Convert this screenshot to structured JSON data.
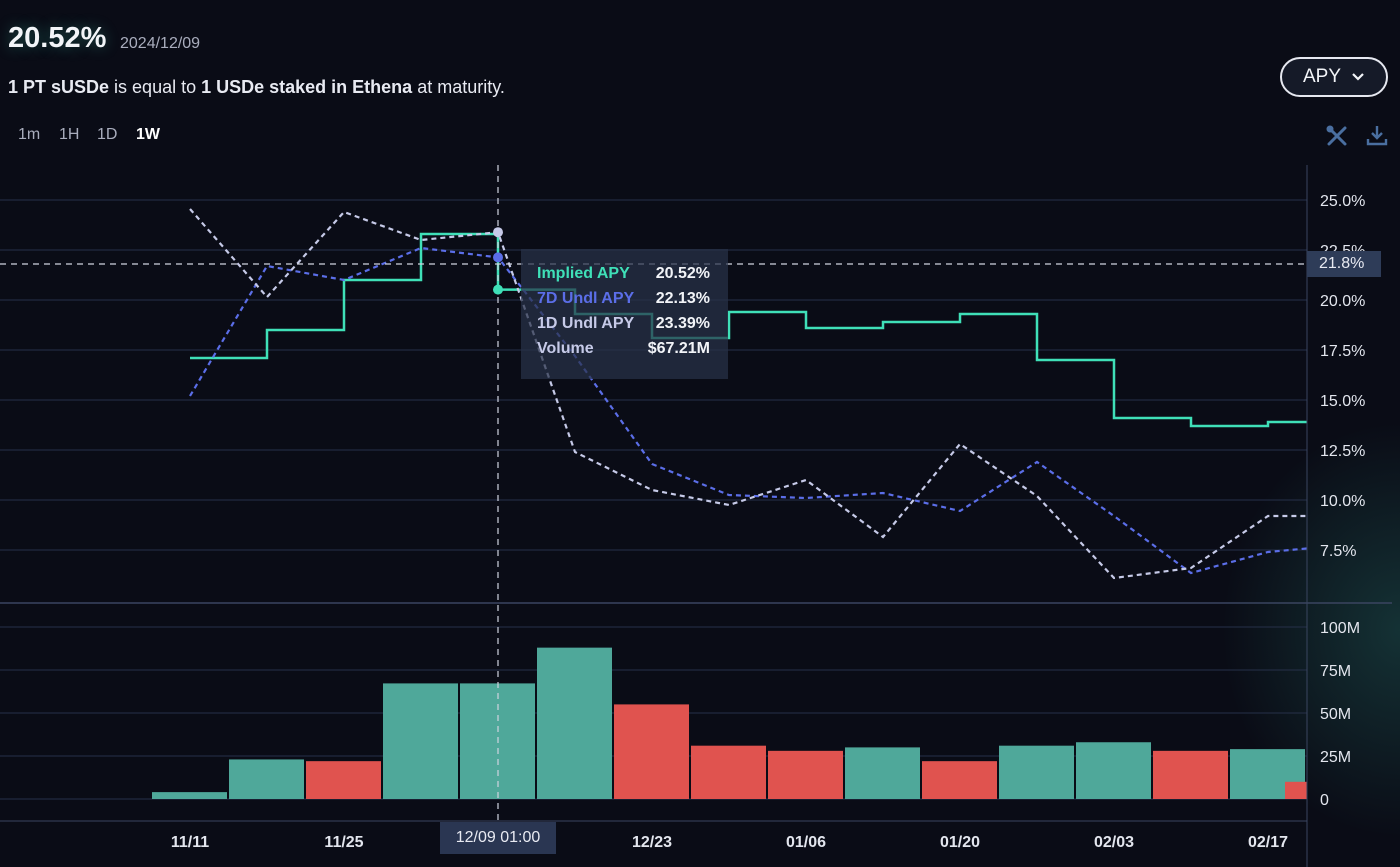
{
  "header": {
    "value": "20.52%",
    "date": "2024/12/09",
    "description": [
      {
        "text": "1 PT sUSDe",
        "bold": true
      },
      {
        "text": " is equal to ",
        "bold": false
      },
      {
        "text": "1 USDe staked in Ethena",
        "bold": true
      },
      {
        "text": " at maturity.",
        "bold": false
      }
    ]
  },
  "timeframes": [
    {
      "label": "1m",
      "active": false
    },
    {
      "label": "1H",
      "active": false
    },
    {
      "label": "1D",
      "active": false
    },
    {
      "label": "1W",
      "active": true
    }
  ],
  "metric_select": {
    "label": "APY"
  },
  "tools": {
    "settings_icon": "wrench-screwdriver-icon",
    "download_icon": "download-icon"
  },
  "tooltip": {
    "rows": [
      {
        "label": "Implied APY",
        "value": "20.52%",
        "color": "#3fe0b8"
      },
      {
        "label": "7D Undl APY",
        "value": "22.13%",
        "color": "#5b6ee8"
      },
      {
        "label": "1D Undl APY",
        "value": "23.39%",
        "color": "#c6cae8"
      },
      {
        "label": "Volume",
        "value": "$67.21M",
        "color": "#c6cae8"
      }
    ]
  },
  "crosshair": {
    "x_label": "12/09 01:00",
    "y_label": "21.8%",
    "y_value": 21.8,
    "x_day": 28
  },
  "chart_data": {
    "type": "line",
    "x_days_since": "11/11",
    "x": [
      0,
      7,
      14,
      21,
      28,
      35,
      42,
      49,
      56,
      63,
      70,
      77,
      84,
      91,
      98,
      103
    ],
    "xticks": [
      {
        "day": 0,
        "label": "11/11"
      },
      {
        "day": 14,
        "label": "11/25"
      },
      {
        "day": 42,
        "label": "12/23"
      },
      {
        "day": 56,
        "label": "01/06"
      },
      {
        "day": 70,
        "label": "01/20"
      },
      {
        "day": 84,
        "label": "02/03"
      },
      {
        "day": 98,
        "label": "02/17"
      }
    ],
    "ylim": [
      5.5,
      26.7
    ],
    "yticks": [
      "25.0%",
      "22.5%",
      "20.0%",
      "17.5%",
      "15.0%",
      "12.5%",
      "10.0%",
      "7.5%"
    ],
    "ytick_values": [
      25,
      22.5,
      20,
      17.5,
      15,
      12.5,
      10,
      7.5
    ],
    "series": [
      {
        "name": "Implied APY",
        "style": "step",
        "color": "#3fe0b8",
        "values": [
          17.1,
          18.5,
          21.0,
          23.3,
          20.52,
          19.3,
          18.1,
          19.4,
          18.6,
          18.9,
          19.3,
          17.0,
          14.1,
          13.7,
          13.9,
          13.9
        ]
      },
      {
        "name": "7D Undl APY",
        "style": "dashed",
        "color": "#5b6ee8",
        "values": [
          15.2,
          21.7,
          21.0,
          22.6,
          22.13,
          17.2,
          11.8,
          10.25,
          10.1,
          10.35,
          9.45,
          11.9,
          9.2,
          6.35,
          7.4,
          7.65
        ]
      },
      {
        "name": "1D Undl APY",
        "style": "dashed",
        "color": "#c6cae8",
        "values": [
          24.55,
          20.15,
          24.4,
          23.0,
          23.39,
          12.4,
          10.5,
          9.75,
          11.0,
          8.15,
          12.8,
          10.2,
          6.1,
          6.6,
          9.2,
          9.2
        ]
      }
    ],
    "volume": {
      "name": "Volume",
      "unit": "M",
      "ylim": [
        0,
        100
      ],
      "yticks": [
        "100M",
        "75M",
        "50M",
        "25M",
        "0"
      ],
      "ytick_values": [
        100,
        75,
        50,
        25,
        0
      ],
      "values": [
        4,
        23,
        22,
        67.21,
        67.21,
        88,
        55,
        31,
        28,
        30,
        22,
        31,
        33,
        28,
        29,
        10
      ],
      "direction": [
        "up",
        "up",
        "down",
        "up",
        "up",
        "up",
        "down",
        "down",
        "down",
        "up",
        "down",
        "up",
        "up",
        "down",
        "up",
        "down"
      ],
      "colors": {
        "up": "#4fa89a",
        "down": "#e0534f"
      }
    }
  }
}
